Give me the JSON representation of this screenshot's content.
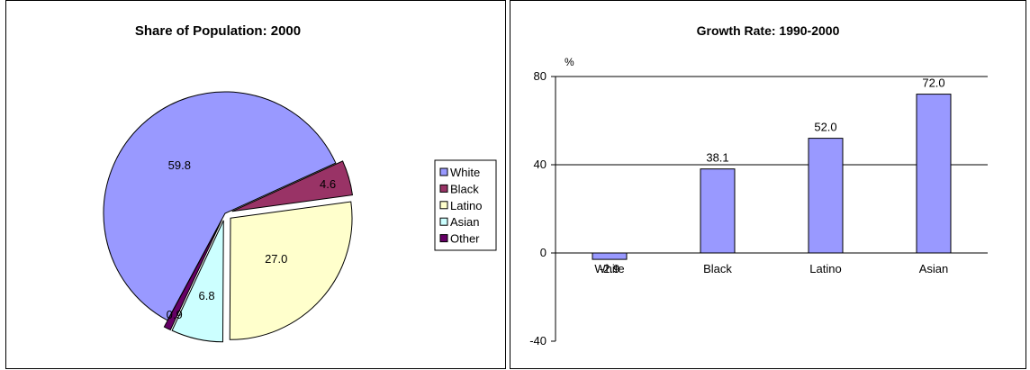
{
  "chart_data": [
    {
      "type": "pie",
      "title": "Share of Population:  2000",
      "categories": [
        "White",
        "Black",
        "Latino",
        "Asian",
        "Other"
      ],
      "values": [
        59.8,
        4.6,
        27.0,
        6.8,
        0.9
      ],
      "value_labels": [
        "59.8",
        "4.6",
        "27.0",
        "6.8",
        "0.9"
      ],
      "colors": [
        "#9999ff",
        "#993366",
        "#ffffcc",
        "#ccffff",
        "#660066"
      ],
      "exploded": true,
      "legend": "right"
    },
    {
      "type": "bar",
      "title": "Growth Rate:  1990-2000",
      "ylabel": "%",
      "categories": [
        "White",
        "Black",
        "Latino",
        "Asian"
      ],
      "values": [
        -2.9,
        38.1,
        52.0,
        72.0
      ],
      "value_labels": [
        "-2.9",
        "38.1",
        "52.0",
        "72.0"
      ],
      "ylim": [
        -40,
        80
      ],
      "yticks": [
        -40,
        0,
        40,
        80
      ],
      "grid": true,
      "bar_color": "#9999ff"
    }
  ]
}
